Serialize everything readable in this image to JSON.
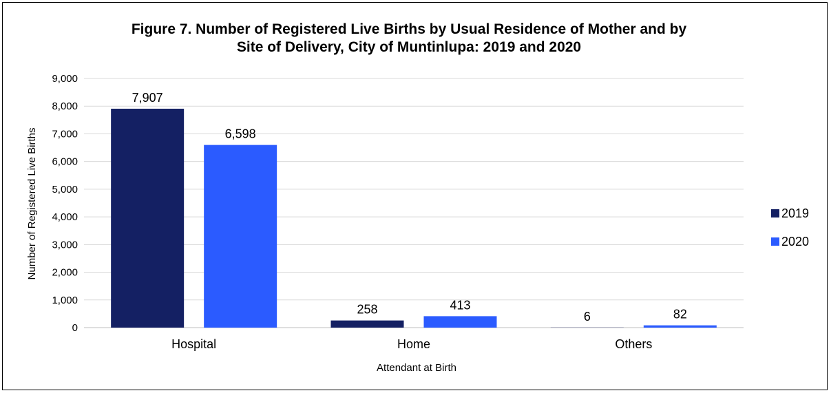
{
  "chart_data": {
    "type": "bar",
    "title_lines": [
      "Figure 7. Number of Registered Live Births by Usual Residence of Mother and by",
      "Site of Delivery, City of Muntinlupa: 2019 and 2020"
    ],
    "xlabel": "Attendant at Birth",
    "ylabel": "Number of Registered Live Births",
    "ylim": [
      0,
      9000
    ],
    "yticks": [
      0,
      1000,
      2000,
      3000,
      4000,
      5000,
      6000,
      7000,
      8000,
      9000
    ],
    "ytick_labels": [
      "0",
      "1,000",
      "2,000",
      "3,000",
      "4,000",
      "5,000",
      "6,000",
      "7,000",
      "8,000",
      "9,000"
    ],
    "categories": [
      "Hospital",
      "Home",
      "Others"
    ],
    "series": [
      {
        "name": "2019",
        "color": "#142063",
        "values": [
          7907,
          258,
          6
        ],
        "labels": [
          "7,907",
          "258",
          "6"
        ]
      },
      {
        "name": "2020",
        "color": "#2b5bff",
        "values": [
          6598,
          413,
          82
        ],
        "labels": [
          "6,598",
          "413",
          "82"
        ]
      }
    ],
    "grid": true,
    "legend_position": "right"
  }
}
